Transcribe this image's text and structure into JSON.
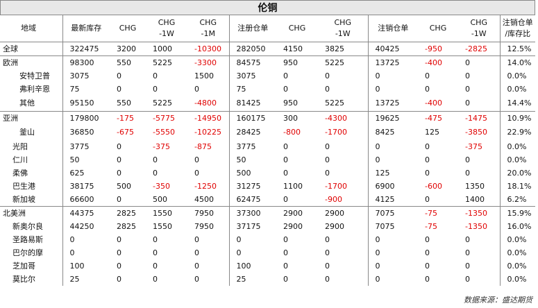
{
  "title": "伦铜",
  "headers": [
    "地域",
    "最新库存",
    "CHG",
    "CHG\n-1W",
    "CHG\n-1M",
    "注册仓单",
    "CHG",
    "CHG\n-1W",
    "注销仓单",
    "CHG",
    "CHG\n-1W",
    "注销仓单\n/库存比"
  ],
  "rows": [
    {
      "region": "全球",
      "indent": 0,
      "values": [
        "322475",
        "3200",
        "1000",
        "-10300",
        "282050",
        "4150",
        "3825",
        "40425",
        "-950",
        "-2825",
        "12.5%"
      ],
      "sep": true
    },
    {
      "region": "欧洲",
      "indent": 0,
      "values": [
        "98300",
        "550",
        "5225",
        "-3300",
        "84575",
        "950",
        "5225",
        "13725",
        "-400",
        "0",
        "14.0%"
      ],
      "sep": true
    },
    {
      "region": "安特卫普",
      "indent": 2,
      "values": [
        "3075",
        "0",
        "0",
        "1500",
        "3075",
        "0",
        "0",
        "0",
        "0",
        "0",
        "0.0%"
      ]
    },
    {
      "region": "弗利辛恩",
      "indent": 2,
      "values": [
        "75",
        "0",
        "0",
        "0",
        "75",
        "0",
        "0",
        "0",
        "0",
        "0",
        "0.0%"
      ]
    },
    {
      "region": "其他",
      "indent": 2,
      "values": [
        "95150",
        "550",
        "5225",
        "-4800",
        "81425",
        "950",
        "5225",
        "13725",
        "-400",
        "0",
        "14.4%"
      ]
    },
    {
      "region": "亚洲",
      "indent": 0,
      "values": [
        "179800",
        "-175",
        "-5775",
        "-14950",
        "160175",
        "300",
        "-4300",
        "19625",
        "-475",
        "-1475",
        "10.9%"
      ],
      "sep": true
    },
    {
      "region": "釜山",
      "indent": 2,
      "values": [
        "36850",
        "-675",
        "-5550",
        "-10225",
        "28425",
        "-800",
        "-1700",
        "8425",
        "125",
        "-3850",
        "22.9%"
      ]
    },
    {
      "region": "光阳",
      "indent": 1,
      "values": [
        "3775",
        "0",
        "-375",
        "-875",
        "3775",
        "0",
        "0",
        "0",
        "0",
        "-375",
        "0.0%"
      ]
    },
    {
      "region": "仁川",
      "indent": 1,
      "values": [
        "50",
        "0",
        "0",
        "0",
        "50",
        "0",
        "0",
        "0",
        "0",
        "0",
        "0.0%"
      ]
    },
    {
      "region": "柔佛",
      "indent": 1,
      "values": [
        "625",
        "0",
        "0",
        "0",
        "500",
        "0",
        "0",
        "125",
        "0",
        "0",
        "20.0%"
      ]
    },
    {
      "region": "巴生港",
      "indent": 1,
      "values": [
        "38175",
        "500",
        "-350",
        "-1250",
        "31275",
        "1100",
        "-1700",
        "6900",
        "-600",
        "1350",
        "18.1%"
      ]
    },
    {
      "region": "新加坡",
      "indent": 1,
      "values": [
        "66600",
        "0",
        "500",
        "4500",
        "62475",
        "0",
        "-900",
        "4125",
        "0",
        "1400",
        "6.2%"
      ]
    },
    {
      "region": "北美洲",
      "indent": 0,
      "values": [
        "44375",
        "2825",
        "1550",
        "7950",
        "37300",
        "2900",
        "2900",
        "7075",
        "-75",
        "-1350",
        "15.9%"
      ],
      "sep": true
    },
    {
      "region": "新奥尔良",
      "indent": 1,
      "values": [
        "44250",
        "2825",
        "1550",
        "7950",
        "37175",
        "2900",
        "2900",
        "7075",
        "-75",
        "-1350",
        "16.0%"
      ]
    },
    {
      "region": "圣路易斯",
      "indent": 1,
      "values": [
        "0",
        "0",
        "0",
        "0",
        "0",
        "0",
        "0",
        "0",
        "0",
        "0",
        "0.0%"
      ]
    },
    {
      "region": "巴尔的摩",
      "indent": 1,
      "values": [
        "0",
        "0",
        "0",
        "0",
        "0",
        "0",
        "0",
        "0",
        "0",
        "0",
        "0.0%"
      ]
    },
    {
      "region": "芝加哥",
      "indent": 1,
      "values": [
        "100",
        "0",
        "0",
        "0",
        "100",
        "0",
        "0",
        "0",
        "0",
        "0",
        "0.0%"
      ]
    },
    {
      "region": "莫比尔",
      "indent": 1,
      "values": [
        "25",
        "0",
        "0",
        "0",
        "25",
        "0",
        "0",
        "0",
        "0",
        "0",
        "0.0%"
      ]
    }
  ],
  "footer": "数据来源：盛达期货",
  "colors": {
    "negative": "#e00000",
    "header_bg": "#e8e8e8",
    "line": "#888888"
  }
}
